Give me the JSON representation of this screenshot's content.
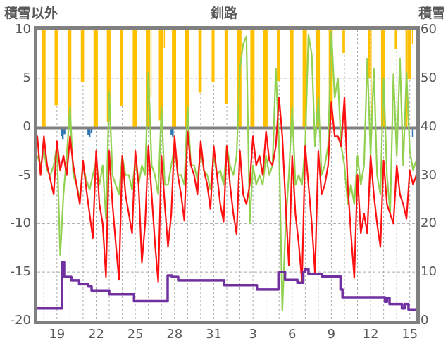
{
  "header": {
    "left_axis_title": "積雪以外",
    "title": "釧路",
    "right_axis_title": "積雪"
  },
  "colors": {
    "orange": "#FFC000",
    "blue": "#2E75B6",
    "red": "#FF1010",
    "green": "#92D050",
    "purple": "#7030A0",
    "border": "#808080",
    "grid": "#ABABAB",
    "text": "#595959"
  },
  "chart_data": {
    "type": "combo",
    "title": "釧路",
    "x_axis": {
      "span_days": 29,
      "start": "12-18",
      "end": "01-16",
      "tick_labels": [
        "19",
        "22",
        "25",
        "28",
        "31",
        "3",
        "6",
        "9",
        "12",
        "15"
      ],
      "tick_positions_days": [
        1.5,
        4.5,
        7.5,
        10.5,
        13.5,
        16.5,
        19.5,
        22.5,
        25.5,
        28.5
      ],
      "gridlines": "daily-dashed"
    },
    "left_axis": {
      "title": "積雪以外",
      "range": [
        -20,
        10
      ],
      "ticks": [
        10,
        5,
        0,
        -5,
        -10,
        -15,
        -20
      ],
      "grid_values": [
        5,
        -5,
        -10,
        -15
      ]
    },
    "right_axis": {
      "title": "積雪",
      "range": [
        0,
        60
      ],
      "ticks": [
        60,
        50,
        40,
        30,
        20,
        10,
        0
      ]
    },
    "series": [
      {
        "id": "orange_bars",
        "type": "bar",
        "axis": "left",
        "color": "#FFC000",
        "note": "bars hang from axis top (value 10) down to listed bottom value; [start_day,end_day,bottom_value]",
        "bars": [
          [
            0.32,
            0.63,
            0
          ],
          [
            1.32,
            1.6,
            2.2
          ],
          [
            2.32,
            2.6,
            0
          ],
          [
            3.33,
            3.58,
            4.6
          ],
          [
            4.3,
            4.63,
            0
          ],
          [
            5.32,
            5.6,
            0.5
          ],
          [
            6.33,
            6.57,
            2.1
          ],
          [
            7.3,
            7.62,
            0
          ],
          [
            8.3,
            8.62,
            0
          ],
          [
            8.66,
            8.7,
            3
          ],
          [
            9.3,
            9.6,
            0.6
          ],
          [
            9.68,
            9.75,
            8.1
          ],
          [
            10.3,
            10.62,
            0
          ],
          [
            11.3,
            11.62,
            0
          ],
          [
            12.33,
            12.58,
            3.5
          ],
          [
            13.34,
            13.56,
            4.6
          ],
          [
            14.33,
            14.6,
            2.3
          ],
          [
            15.3,
            15.62,
            0
          ],
          [
            16.3,
            16.62,
            0
          ],
          [
            17.3,
            17.62,
            0
          ],
          [
            18.33,
            18.57,
            4.7
          ],
          [
            19.3,
            19.6,
            0
          ],
          [
            20.3,
            20.62,
            0
          ],
          [
            21.3,
            21.62,
            0
          ],
          [
            22.3,
            22.6,
            0.7
          ],
          [
            23.35,
            23.55,
            7.6
          ],
          [
            25.33,
            25.48,
            5.0
          ],
          [
            25.5,
            25.55,
            0.5
          ],
          [
            26.3,
            26.6,
            0
          ],
          [
            27.35,
            27.5,
            8.0
          ],
          [
            28.17,
            28.32,
            0
          ],
          [
            28.33,
            28.58,
            4.9
          ],
          [
            28.66,
            28.72,
            8.5
          ]
        ]
      },
      {
        "id": "blue_bars",
        "type": "bar",
        "axis": "left",
        "color": "#2E75B6",
        "note": "short bars hanging just below the 0 line; [day,depth]",
        "bars": [
          [
            1.86,
            0.7
          ],
          [
            1.95,
            1.0
          ],
          [
            2.08,
            0.5
          ],
          [
            3.9,
            0.55
          ],
          [
            4.0,
            0.8
          ],
          [
            4.15,
            0.4
          ],
          [
            10.26,
            0.6
          ],
          [
            10.37,
            0.75
          ],
          [
            28.73,
            0.8
          ]
        ]
      },
      {
        "id": "green_line",
        "type": "line",
        "axis": "left",
        "color": "#92D050",
        "x_start_day": 0,
        "x_step_days": 0.25,
        "values": [
          -3,
          -4,
          -2.5,
          -4.5,
          -5,
          -4,
          -2,
          -13.3,
          -7,
          -3,
          2,
          -5,
          -6,
          -7.5,
          -4,
          -5.5,
          -6.5,
          -5,
          -3.5,
          -6,
          -4,
          -9.5,
          3.6,
          -5,
          -6,
          -7,
          -3,
          -5,
          -5,
          -6.5,
          -3.5,
          -6,
          -4,
          -5,
          5.6,
          -4,
          -5,
          -7,
          2,
          -6,
          -6,
          -4,
          -2,
          -5,
          -5,
          -6,
          2.1,
          -4,
          -4,
          -5.5,
          -2.5,
          -4.5,
          -5,
          -6.5,
          -3,
          -5,
          -4.5,
          -6,
          -2,
          -4,
          -5,
          -3,
          6,
          8.5,
          9.3,
          -10,
          -4,
          -6,
          -5,
          -6,
          -3,
          -5,
          -4,
          6,
          -2,
          -19,
          -10,
          -5,
          2,
          -6,
          -5,
          -6,
          -2,
          9.5,
          7.4,
          -2,
          3,
          -5,
          -4,
          -2,
          9.8,
          3,
          5,
          -2,
          -4,
          -8,
          -6,
          -8,
          -3,
          -6,
          -4,
          7,
          -3,
          6,
          -5,
          -7,
          5,
          -5,
          -8.9,
          5.4,
          -3,
          7,
          -4,
          5.6,
          -2.5,
          -4.5,
          -3.5
        ]
      },
      {
        "id": "red_line",
        "type": "line",
        "axis": "left",
        "color": "#FF1010",
        "x_start_day": 0,
        "x_step_days": 0.25,
        "values": [
          -1,
          -5,
          -1,
          -4,
          -5.5,
          -7,
          -1.5,
          -4.5,
          -3,
          -5,
          -1,
          -4,
          -6,
          -8,
          -3.5,
          -6.5,
          -9,
          -11.5,
          -2.5,
          -8,
          -10,
          -15.5,
          -2.5,
          -8,
          -12,
          -15.8,
          -3,
          -7,
          -9,
          -11,
          -2.5,
          -6,
          -14,
          -10,
          -2,
          -7,
          -12,
          -16,
          -3,
          -8,
          -12.4,
          -9,
          -1,
          -5,
          -7,
          -9.7,
          -0.5,
          -4,
          -5,
          -7,
          -1.5,
          -4.5,
          -6,
          -8.5,
          -2,
          -5,
          -8,
          -9.8,
          -2,
          -6,
          -9,
          -11.1,
          -2.5,
          -7,
          -8,
          -6,
          -1,
          -4,
          -3,
          -5,
          -0.5,
          -3.5,
          -4,
          -2,
          3,
          -1,
          -8,
          -14.3,
          -3,
          -9,
          -12,
          -16,
          -2,
          -6,
          -10,
          -15.1,
          -2.5,
          -7,
          -6,
          -4,
          2.5,
          -1,
          -1,
          -2,
          3,
          -6,
          -11,
          -15.6,
          -5,
          -11,
          -9,
          -11,
          -3,
          -7,
          -10,
          -12.4,
          -3.5,
          -8,
          -9,
          -10,
          -4,
          -7,
          -8,
          -9.5,
          -4.5,
          -6,
          -5
        ]
      },
      {
        "id": "purple_step",
        "type": "step",
        "axis": "right",
        "color": "#7030A0",
        "note": "snow depth (cm) on right axis; [day,cm]",
        "points": [
          [
            0,
            2.5
          ],
          [
            1.9,
            12
          ],
          [
            2.05,
            9
          ],
          [
            2.6,
            8.3
          ],
          [
            3.2,
            7.5
          ],
          [
            3.9,
            7
          ],
          [
            4.15,
            6.2
          ],
          [
            5.5,
            5.4
          ],
          [
            7.4,
            4
          ],
          [
            9.97,
            9.3
          ],
          [
            10.3,
            9
          ],
          [
            10.78,
            8.3
          ],
          [
            14.3,
            7.3
          ],
          [
            16.8,
            6.4
          ],
          [
            18.45,
            10
          ],
          [
            18.95,
            8.4
          ],
          [
            19.9,
            7.8
          ],
          [
            20.35,
            10
          ],
          [
            20.5,
            10.6
          ],
          [
            20.75,
            9.6
          ],
          [
            21.8,
            9.1
          ],
          [
            23.2,
            6.4
          ],
          [
            23.35,
            4.8
          ],
          [
            26.6,
            3.9
          ],
          [
            26.75,
            4.6
          ],
          [
            26.95,
            3.4
          ],
          [
            27.9,
            2.5
          ],
          [
            28.1,
            3.4
          ],
          [
            28.4,
            2.3
          ],
          [
            29,
            2.3
          ]
        ]
      }
    ]
  }
}
